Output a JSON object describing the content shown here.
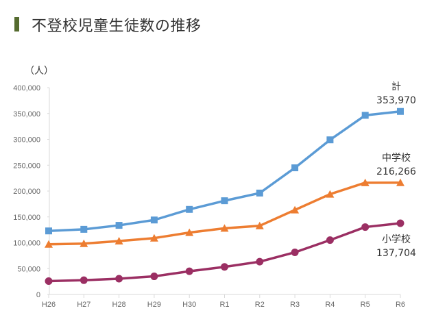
{
  "title": "不登校児童生徒数の推移",
  "chart_data": {
    "type": "line",
    "title": "不登校児童生徒数の推移",
    "ylabel": "（人）",
    "xlabel": "",
    "ylim": [
      0,
      400000
    ],
    "yticks": [
      0,
      50000,
      100000,
      150000,
      200000,
      250000,
      300000,
      350000,
      400000
    ],
    "ytick_labels": [
      "0",
      "50,000",
      "100,000",
      "150,000",
      "200,000",
      "250,000",
      "300,000",
      "350,000",
      "400,000"
    ],
    "categories": [
      "H26",
      "H27",
      "H28",
      "H29",
      "H30",
      "R1",
      "R2",
      "R3",
      "R4",
      "R5",
      "R6"
    ],
    "grid": false,
    "series": [
      {
        "name": "計",
        "label_value": "353,970",
        "color": "#5b9bd5",
        "marker": "square",
        "values": [
          122897,
          125991,
          133683,
          144031,
          164528,
          181272,
          196127,
          244940,
          299048,
          346482,
          353970
        ]
      },
      {
        "name": "中学校",
        "label_value": "216,266",
        "color": "#ed7d31",
        "marker": "triangle",
        "values": [
          97033,
          98408,
          103235,
          108999,
          119687,
          127922,
          132777,
          163442,
          193936,
          216112,
          216266
        ]
      },
      {
        "name": "小学校",
        "label_value": "137,704",
        "color": "#9b2f63",
        "marker": "circle",
        "values": [
          25864,
          27583,
          30448,
          35032,
          44841,
          53350,
          63350,
          81498,
          105112,
          130370,
          137704
        ]
      }
    ]
  }
}
